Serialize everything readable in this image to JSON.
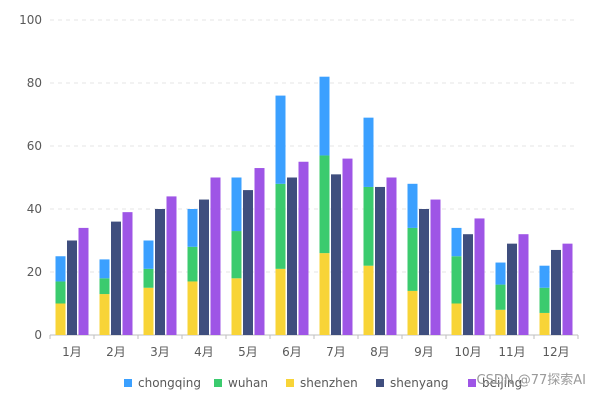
{
  "chart_data": {
    "type": "bar",
    "title": "",
    "xlabel": "",
    "ylabel": "",
    "ylim": [
      0,
      100
    ],
    "yticks": [
      0,
      20,
      40,
      60,
      80,
      100
    ],
    "categories": [
      "1月",
      "2月",
      "3月",
      "4月",
      "5月",
      "6月",
      "7月",
      "8月",
      "9月",
      "10月",
      "11月",
      "12月"
    ],
    "grid": "horizontal-dashed",
    "legend_position": "bottom",
    "stacked_group": [
      "shenzhen",
      "wuhan",
      "chongqing"
    ],
    "series": [
      {
        "name": "chongqing",
        "color": "#3BA0FF",
        "stack": "city",
        "values": [
          8,
          6,
          9,
          12,
          17,
          28,
          25,
          22,
          14,
          9,
          7,
          7
        ]
      },
      {
        "name": "wuhan",
        "color": "#3BCB6E",
        "stack": "city",
        "values": [
          7,
          5,
          6,
          11,
          15,
          27,
          31,
          25,
          20,
          15,
          8,
          8
        ]
      },
      {
        "name": "shenzhen",
        "color": "#F8D437",
        "stack": "city",
        "values": [
          10,
          13,
          15,
          17,
          18,
          21,
          26,
          22,
          14,
          10,
          8,
          7
        ]
      },
      {
        "name": "shenyang",
        "color": "#3F4E7E",
        "stack": null,
        "values": [
          30,
          36,
          40,
          43,
          46,
          50,
          51,
          47,
          40,
          32,
          29,
          27
        ]
      },
      {
        "name": "beijing",
        "color": "#9E55E6",
        "stack": null,
        "values": [
          34,
          39,
          44,
          50,
          53,
          55,
          56,
          50,
          43,
          37,
          32,
          29
        ]
      }
    ]
  },
  "legend": {
    "items": [
      {
        "label": "chongqing",
        "color": "#3BA0FF"
      },
      {
        "label": "wuhan",
        "color": "#3BCB6E"
      },
      {
        "label": "shenzhen",
        "color": "#F8D437"
      },
      {
        "label": "shenyang",
        "color": "#3F4E7E"
      },
      {
        "label": "beijing",
        "color": "#9E55E6"
      }
    ]
  },
  "watermark": "CSDN @77探索AI"
}
